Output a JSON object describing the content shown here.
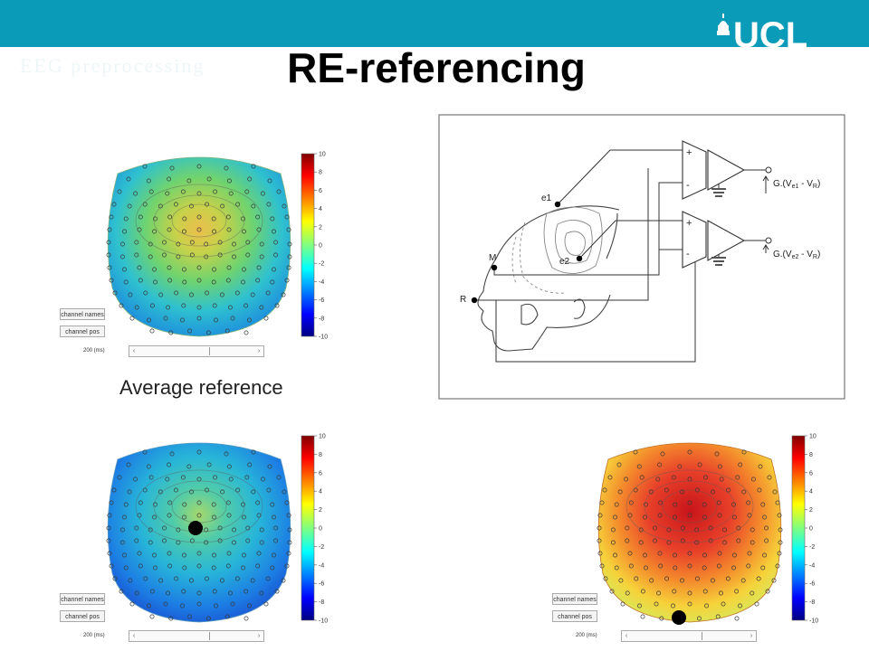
{
  "header": {
    "logo_text": "UCL",
    "title": "RE-referencing",
    "faded_subtitle": "EEG preprocessing"
  },
  "colors": {
    "banner": "#0a9bb8",
    "title": "#000000",
    "electrode_dot": "#000000"
  },
  "panels": [
    {
      "id": "top-left",
      "field_level": "mid-green (near zero)",
      "colorbar_ticks": [
        "10",
        "8",
        "6",
        "4",
        "2",
        "0",
        "-2",
        "-4",
        "-6",
        "-8",
        "-10"
      ],
      "buttons": [
        "channel names",
        "channel pos"
      ],
      "time_label": "200 (ms)",
      "reference_marker": "none"
    },
    {
      "id": "bottom-left",
      "field_level": "cyan/blue (negative)",
      "colorbar_ticks": [
        "10",
        "8",
        "6",
        "4",
        "2",
        "0",
        "-2",
        "-4",
        "-6",
        "-8",
        "-10"
      ],
      "buttons": [
        "channel names",
        "channel pos"
      ],
      "time_label": "200 (ms)",
      "reference_marker": "vertex"
    },
    {
      "id": "bottom-right",
      "field_level": "red (positive)",
      "colorbar_ticks": [
        "10",
        "8",
        "6",
        "4",
        "2",
        "0",
        "-2",
        "-4",
        "-6",
        "-8",
        "-10"
      ],
      "buttons": [
        "channel names",
        "channel pos"
      ],
      "time_label": "200 (ms)",
      "reference_marker": "occipital"
    }
  ],
  "caption": "Average reference",
  "circuit": {
    "electrodes": [
      "e1",
      "e2",
      "M",
      "R"
    ],
    "amp_signs": [
      "+",
      "-"
    ],
    "output1": {
      "prefix": "G.(V",
      "sub1": "e1",
      "mid": " - V",
      "sub2": "R",
      "suffix": ")"
    },
    "output2": {
      "prefix": "G.(V",
      "sub1": "e2",
      "mid": " - V",
      "sub2": "R",
      "suffix": ")"
    }
  }
}
